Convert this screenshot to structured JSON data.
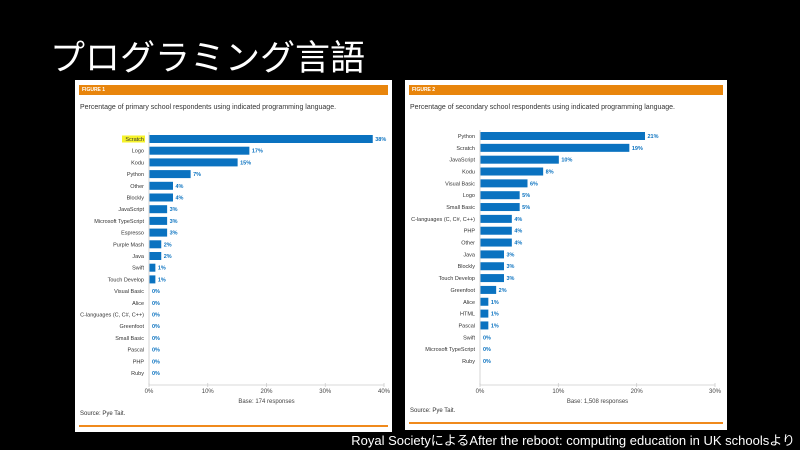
{
  "slide": {
    "title": "プログラミング言語",
    "caption": "Royal SocietyによるAfter the reboot: computing education in UK schoolsより"
  },
  "colors": {
    "bar": "#0a72c0",
    "orange": "#e8850c",
    "highlight": "#f5f22a",
    "label": "#0a72c0"
  },
  "chart_data": [
    {
      "type": "bar",
      "orientation": "horizontal",
      "figure_label": "FIGURE 1",
      "title": "Percentage of primary school respondents using indicated programming language.",
      "xlabel": "Base: 174 responses",
      "source": "Source: Pye Tait.",
      "xlim": [
        0,
        40
      ],
      "ticks": [
        "0%",
        "10%",
        "20%",
        "30%",
        "40%"
      ],
      "highlighted": "Scratch",
      "categories": [
        "Scratch",
        "Logo",
        "Kodu",
        "Python",
        "Other",
        "Blockly",
        "JavaScript",
        "Microsoft TypeScript",
        "Espresso",
        "Purple Mash",
        "Java",
        "Swift",
        "Touch Develop",
        "Visual Basic",
        "Alice",
        "C-languages (C, C#, C++)",
        "Greenfoot",
        "Small Basic",
        "Pascal",
        "PHP",
        "Ruby"
      ],
      "values": [
        38,
        17,
        15,
        7,
        4,
        4,
        3,
        3,
        3,
        2,
        2,
        1,
        1,
        0,
        0,
        0,
        0,
        0,
        0,
        0,
        0
      ]
    },
    {
      "type": "bar",
      "orientation": "horizontal",
      "figure_label": "FIGURE 2",
      "title": "Percentage of secondary school respondents using indicated programming language.",
      "xlabel": "Base: 1,508 responses",
      "source": "Source: Pye Tait.",
      "xlim": [
        0,
        30
      ],
      "ticks": [
        "0%",
        "10%",
        "20%",
        "30%"
      ],
      "categories": [
        "Python",
        "Scratch",
        "JavaScript",
        "Kodu",
        "Visual Basic",
        "Logo",
        "Small Basic",
        "C-languages (C, C#, C++)",
        "PHP",
        "Other",
        "Java",
        "Blockly",
        "Touch Develop",
        "Greenfoot",
        "Alice",
        "HTML",
        "Pascal",
        "Swift",
        "Microsoft TypeScript",
        "Ruby"
      ],
      "values": [
        21,
        19,
        10,
        8,
        6,
        5,
        5,
        4,
        4,
        4,
        3,
        3,
        3,
        2,
        1,
        1,
        1,
        0,
        0,
        0
      ]
    }
  ]
}
